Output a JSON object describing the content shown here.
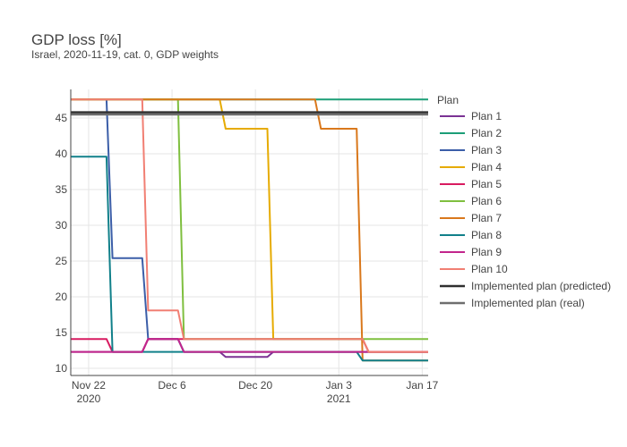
{
  "chart_data": {
    "type": "line",
    "title": "GDP loss [%]",
    "subtitle": "Israel, 2020-11-19, cat. 0, GDP weights",
    "xlabel": "",
    "ylabel": "",
    "x_range": [
      "2020-11-19",
      "2021-01-18"
    ],
    "y_range": [
      9,
      49
    ],
    "x_ticks": [
      {
        "date": "2020-11-22",
        "label": "Nov 22",
        "sublabel": "2020"
      },
      {
        "date": "2020-12-06",
        "label": "Dec 6",
        "sublabel": ""
      },
      {
        "date": "2020-12-20",
        "label": "Dec 20",
        "sublabel": ""
      },
      {
        "date": "2021-01-03",
        "label": "Jan 3",
        "sublabel": "2021"
      },
      {
        "date": "2021-01-17",
        "label": "Jan 17",
        "sublabel": ""
      }
    ],
    "y_ticks": [
      10,
      15,
      20,
      25,
      30,
      35,
      40,
      45
    ],
    "legend": {
      "title": "Plan",
      "position": "right"
    },
    "series": [
      {
        "name": "Plan 1",
        "color": "#7b3294",
        "width": 2,
        "points": [
          [
            "2020-11-19",
            12.3
          ],
          [
            "2020-12-01",
            12.3
          ],
          [
            "2020-12-02",
            14.1
          ],
          [
            "2020-12-07",
            14.1
          ],
          [
            "2020-12-08",
            12.3
          ],
          [
            "2020-12-14",
            12.3
          ],
          [
            "2020-12-15",
            11.6
          ],
          [
            "2020-12-22",
            11.6
          ],
          [
            "2020-12-23",
            12.3
          ],
          [
            "2021-01-18",
            12.3
          ]
        ]
      },
      {
        "name": "Plan 2",
        "color": "#1b9e77",
        "width": 2,
        "points": [
          [
            "2020-11-19",
            47.6
          ],
          [
            "2021-01-18",
            47.6
          ]
        ]
      },
      {
        "name": "Plan 3",
        "color": "#3b5ea8",
        "width": 2,
        "points": [
          [
            "2020-11-25",
            47.6
          ],
          [
            "2020-11-26",
            25.4
          ],
          [
            "2020-12-01",
            25.4
          ],
          [
            "2020-12-02",
            14.1
          ],
          [
            "2020-12-07",
            14.1
          ],
          [
            "2020-12-08",
            12.3
          ],
          [
            "2021-01-18",
            12.3
          ]
        ]
      },
      {
        "name": "Plan 4",
        "color": "#e6ab02",
        "width": 2,
        "points": [
          [
            "2020-11-19",
            47.6
          ],
          [
            "2020-12-14",
            47.6
          ],
          [
            "2020-12-15",
            43.5
          ],
          [
            "2020-12-22",
            43.5
          ],
          [
            "2020-12-23",
            14.1
          ],
          [
            "2021-01-07",
            14.1
          ],
          [
            "2021-01-08",
            12.3
          ],
          [
            "2021-01-18",
            12.3
          ]
        ]
      },
      {
        "name": "Plan 5",
        "color": "#d81b60",
        "width": 2,
        "points": [
          [
            "2020-11-19",
            14.1
          ],
          [
            "2020-11-25",
            14.1
          ],
          [
            "2020-11-26",
            12.3
          ],
          [
            "2020-12-01",
            12.3
          ],
          [
            "2020-12-02",
            14.1
          ],
          [
            "2021-01-07",
            14.1
          ],
          [
            "2021-01-08",
            12.3
          ],
          [
            "2021-01-18",
            12.3
          ]
        ]
      },
      {
        "name": "Plan 6",
        "color": "#7fbf3f",
        "width": 2,
        "points": [
          [
            "2020-11-19",
            47.6
          ],
          [
            "2020-12-07",
            47.6
          ],
          [
            "2020-12-08",
            14.1
          ],
          [
            "2021-01-18",
            14.1
          ]
        ]
      },
      {
        "name": "Plan 7",
        "color": "#d9781c",
        "width": 2,
        "points": [
          [
            "2020-11-19",
            47.6
          ],
          [
            "2020-12-30",
            47.6
          ],
          [
            "2020-12-31",
            43.5
          ],
          [
            "2021-01-06",
            43.5
          ],
          [
            "2021-01-07",
            11.1
          ],
          [
            "2021-01-18",
            11.1
          ]
        ]
      },
      {
        "name": "Plan 8",
        "color": "#11808a",
        "width": 2,
        "points": [
          [
            "2020-11-19",
            39.6
          ],
          [
            "2020-11-25",
            39.6
          ],
          [
            "2020-11-26",
            12.3
          ],
          [
            "2021-01-06",
            12.3
          ],
          [
            "2021-01-07",
            11.1
          ],
          [
            "2021-01-18",
            11.1
          ]
        ]
      },
      {
        "name": "Plan 9",
        "color": "#c2258c",
        "width": 2,
        "points": [
          [
            "2020-11-19",
            12.3
          ],
          [
            "2020-12-01",
            12.3
          ],
          [
            "2020-12-02",
            14.1
          ],
          [
            "2020-12-07",
            14.1
          ],
          [
            "2020-12-08",
            12.3
          ],
          [
            "2021-01-07",
            12.3
          ],
          [
            "2021-01-18",
            12.3
          ]
        ]
      },
      {
        "name": "Plan 10",
        "color": "#f17f73",
        "width": 2,
        "points": [
          [
            "2020-11-19",
            47.6
          ],
          [
            "2020-12-01",
            47.6
          ],
          [
            "2020-12-02",
            18.1
          ],
          [
            "2020-12-07",
            18.1
          ],
          [
            "2020-12-08",
            14.1
          ],
          [
            "2021-01-07",
            14.1
          ],
          [
            "2021-01-08",
            12.3
          ],
          [
            "2021-01-18",
            12.3
          ]
        ]
      },
      {
        "name": "Implemented plan (predicted)",
        "color": "#2f2f2f",
        "width": 2.5,
        "points": [
          [
            "2020-11-19",
            45.8
          ],
          [
            "2021-01-18",
            45.8
          ]
        ]
      },
      {
        "name": "Implemented plan (real)",
        "color": "#6e6e6e",
        "width": 2.5,
        "points": [
          [
            "2020-11-19",
            45.5
          ],
          [
            "2021-01-18",
            45.5
          ]
        ]
      }
    ]
  }
}
